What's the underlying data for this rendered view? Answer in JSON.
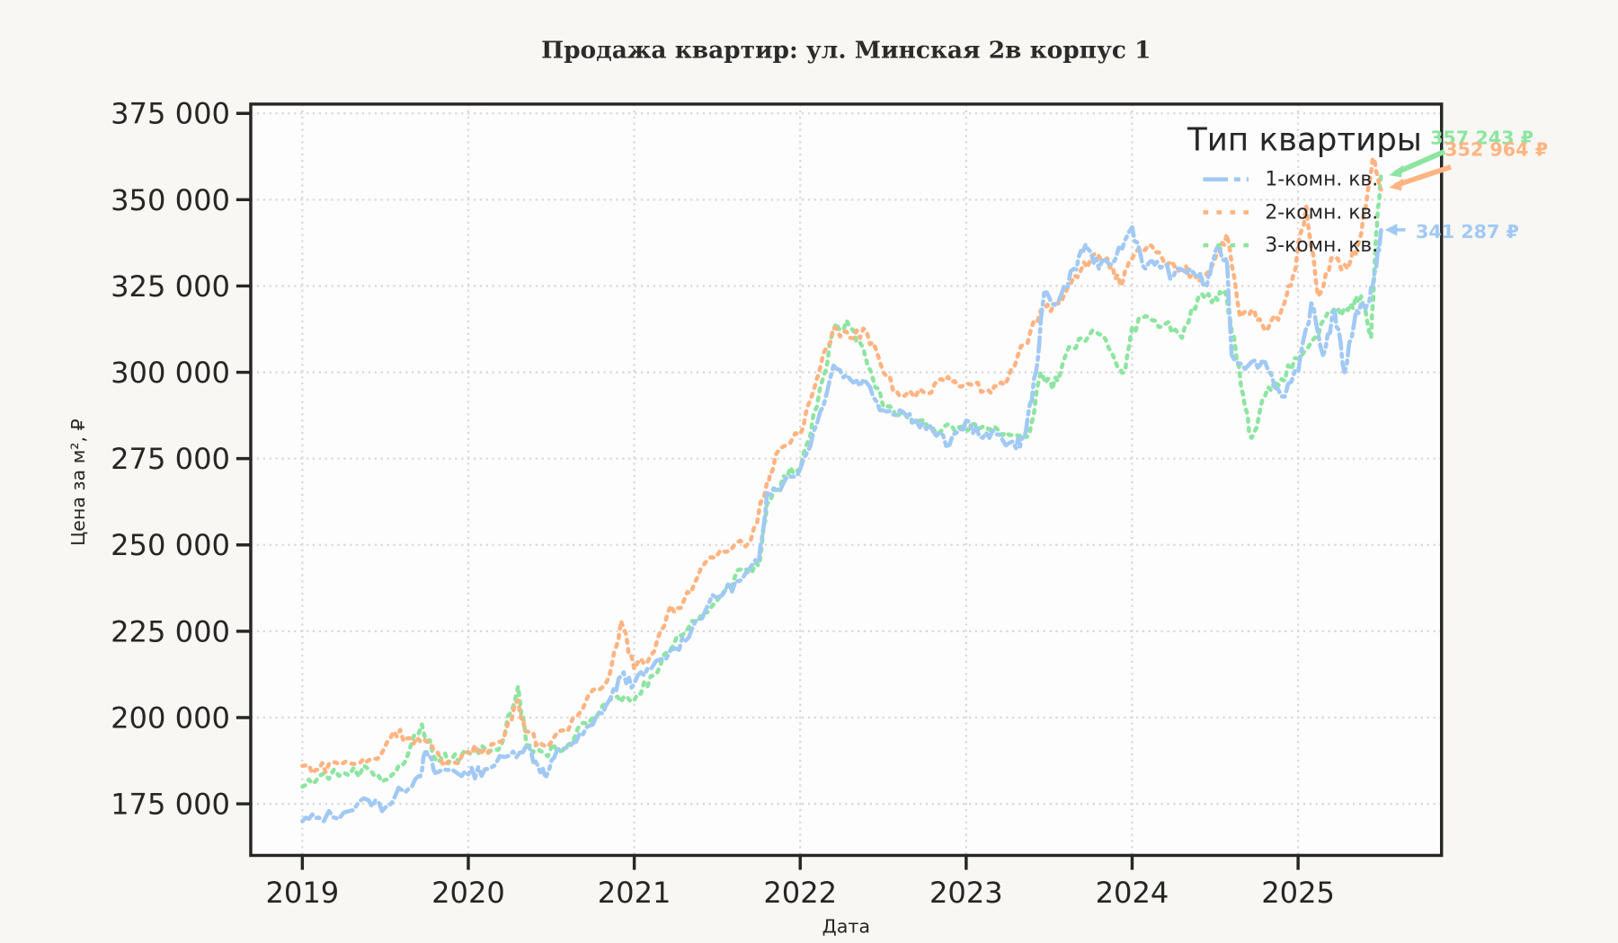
{
  "chart_data": {
    "type": "line",
    "title": "Продажа квартир: ул. Минская 2в корпус 1",
    "xlabel": "Дата",
    "ylabel": "Цена за м², ₽",
    "xlim": [
      2018.69,
      2025.87
    ],
    "ylim": [
      160000,
      377500
    ],
    "x_ticks": [
      2019,
      2020,
      2021,
      2022,
      2023,
      2024,
      2025
    ],
    "x_tick_labels": [
      "2019",
      "2020",
      "2021",
      "2022",
      "2023",
      "2024",
      "2025"
    ],
    "y_ticks": [
      175000,
      200000,
      225000,
      250000,
      275000,
      300000,
      325000,
      350000,
      375000
    ],
    "y_tick_labels": [
      "175 000",
      "200 000",
      "225 000",
      "250 000",
      "275 000",
      "300 000",
      "325 000",
      "350 000",
      "375 000"
    ],
    "grid": true,
    "legend": {
      "title": "Тип квартиры",
      "position": "upper right"
    },
    "series": [
      {
        "name": "1-комн. кв.",
        "color": "#a1c9f4",
        "style": "dashdot",
        "last_value_label": "341 287 ₽",
        "points": [
          [
            2019.0,
            170000
          ],
          [
            2019.1,
            171000
          ],
          [
            2019.25,
            172500
          ],
          [
            2019.4,
            176000
          ],
          [
            2019.5,
            174000
          ],
          [
            2019.6,
            179000
          ],
          [
            2019.7,
            183000
          ],
          [
            2019.75,
            190000
          ],
          [
            2019.8,
            184000
          ],
          [
            2019.9,
            185000
          ],
          [
            2020.0,
            183500
          ],
          [
            2020.1,
            185000
          ],
          [
            2020.25,
            189000
          ],
          [
            2020.35,
            192000
          ],
          [
            2020.42,
            186000
          ],
          [
            2020.47,
            183000
          ],
          [
            2020.55,
            191000
          ],
          [
            2020.65,
            193000
          ],
          [
            2020.75,
            198000
          ],
          [
            2020.85,
            205000
          ],
          [
            2020.92,
            212000
          ],
          [
            2021.0,
            210000
          ],
          [
            2021.1,
            214000
          ],
          [
            2021.25,
            220000
          ],
          [
            2021.35,
            226000
          ],
          [
            2021.45,
            233000
          ],
          [
            2021.55,
            237000
          ],
          [
            2021.65,
            240000
          ],
          [
            2021.75,
            245000
          ],
          [
            2021.8,
            265000
          ],
          [
            2021.9,
            268000
          ],
          [
            2022.0,
            272000
          ],
          [
            2022.1,
            285000
          ],
          [
            2022.2,
            302000
          ],
          [
            2022.3,
            298000
          ],
          [
            2022.4,
            297000
          ],
          [
            2022.5,
            289000
          ],
          [
            2022.6,
            289000
          ],
          [
            2022.7,
            286000
          ],
          [
            2022.8,
            283000
          ],
          [
            2022.9,
            279000
          ],
          [
            2023.0,
            286000
          ],
          [
            2023.1,
            281000
          ],
          [
            2023.2,
            282000
          ],
          [
            2023.3,
            278000
          ],
          [
            2023.36,
            283000
          ],
          [
            2023.42,
            300000
          ],
          [
            2023.47,
            323000
          ],
          [
            2023.55,
            320000
          ],
          [
            2023.65,
            330000
          ],
          [
            2023.72,
            337000
          ],
          [
            2023.8,
            330000
          ],
          [
            2023.9,
            333000
          ],
          [
            2024.0,
            342000
          ],
          [
            2024.08,
            330000
          ],
          [
            2024.15,
            332000
          ],
          [
            2024.25,
            328000
          ],
          [
            2024.35,
            330000
          ],
          [
            2024.45,
            325000
          ],
          [
            2024.5,
            335000
          ],
          [
            2024.57,
            333000
          ],
          [
            2024.6,
            305000
          ],
          [
            2024.7,
            302000
          ],
          [
            2024.8,
            303000
          ],
          [
            2024.9,
            293000
          ],
          [
            2025.0,
            300000
          ],
          [
            2025.08,
            320000
          ],
          [
            2025.15,
            305000
          ],
          [
            2025.22,
            318000
          ],
          [
            2025.28,
            300000
          ],
          [
            2025.35,
            318000
          ],
          [
            2025.42,
            320000
          ],
          [
            2025.47,
            330000
          ],
          [
            2025.5,
            341287
          ]
        ]
      },
      {
        "name": "2-комн. кв.",
        "color": "#ffb482",
        "style": "dotted",
        "last_value_label": "352 964 ₽",
        "points": [
          [
            2019.0,
            186000
          ],
          [
            2019.1,
            185000
          ],
          [
            2019.2,
            187000
          ],
          [
            2019.35,
            187000
          ],
          [
            2019.45,
            188000
          ],
          [
            2019.55,
            196000
          ],
          [
            2019.65,
            194000
          ],
          [
            2019.75,
            193000
          ],
          [
            2019.85,
            186000
          ],
          [
            2020.0,
            190000
          ],
          [
            2020.1,
            191000
          ],
          [
            2020.2,
            193000
          ],
          [
            2020.3,
            205000
          ],
          [
            2020.35,
            196000
          ],
          [
            2020.45,
            192000
          ],
          [
            2020.6,
            196000
          ],
          [
            2020.75,
            208000
          ],
          [
            2020.85,
            212000
          ],
          [
            2020.92,
            228000
          ],
          [
            2021.0,
            214000
          ],
          [
            2021.1,
            218000
          ],
          [
            2021.2,
            230000
          ],
          [
            2021.3,
            234000
          ],
          [
            2021.4,
            243000
          ],
          [
            2021.55,
            248000
          ],
          [
            2021.7,
            251000
          ],
          [
            2021.8,
            268000
          ],
          [
            2021.85,
            276000
          ],
          [
            2022.0,
            282000
          ],
          [
            2022.1,
            298000
          ],
          [
            2022.2,
            313000
          ],
          [
            2022.3,
            310000
          ],
          [
            2022.4,
            312000
          ],
          [
            2022.5,
            300000
          ],
          [
            2022.6,
            293000
          ],
          [
            2022.75,
            294000
          ],
          [
            2022.85,
            298000
          ],
          [
            2022.95,
            296000
          ],
          [
            2023.05,
            297000
          ],
          [
            2023.15,
            294000
          ],
          [
            2023.25,
            298000
          ],
          [
            2023.35,
            308000
          ],
          [
            2023.45,
            318000
          ],
          [
            2023.55,
            320000
          ],
          [
            2023.65,
            328000
          ],
          [
            2023.75,
            333000
          ],
          [
            2023.85,
            333000
          ],
          [
            2023.93,
            325000
          ],
          [
            2024.0,
            333000
          ],
          [
            2024.1,
            337000
          ],
          [
            2024.2,
            331000
          ],
          [
            2024.3,
            330000
          ],
          [
            2024.42,
            327000
          ],
          [
            2024.5,
            333000
          ],
          [
            2024.57,
            340000
          ],
          [
            2024.65,
            316000
          ],
          [
            2024.72,
            318000
          ],
          [
            2024.8,
            312000
          ],
          [
            2024.9,
            318000
          ],
          [
            2024.97,
            328000
          ],
          [
            2025.05,
            348000
          ],
          [
            2025.12,
            322000
          ],
          [
            2025.2,
            333000
          ],
          [
            2025.3,
            330000
          ],
          [
            2025.38,
            340000
          ],
          [
            2025.45,
            362000
          ],
          [
            2025.5,
            352964
          ]
        ]
      },
      {
        "name": "3-комн. кв.",
        "color": "#8de5a1",
        "style": "dotted",
        "last_value_label": "357 243 ₽",
        "points": [
          [
            2019.0,
            180000
          ],
          [
            2019.1,
            183000
          ],
          [
            2019.25,
            184000
          ],
          [
            2019.4,
            185000
          ],
          [
            2019.5,
            182000
          ],
          [
            2019.6,
            186000
          ],
          [
            2019.72,
            198000
          ],
          [
            2019.8,
            188000
          ],
          [
            2019.9,
            188000
          ],
          [
            2020.0,
            190000
          ],
          [
            2020.1,
            191000
          ],
          [
            2020.2,
            192000
          ],
          [
            2020.3,
            209000
          ],
          [
            2020.35,
            192000
          ],
          [
            2020.45,
            190000
          ],
          [
            2020.6,
            192000
          ],
          [
            2020.75,
            200000
          ],
          [
            2020.9,
            206000
          ],
          [
            2021.0,
            205000
          ],
          [
            2021.1,
            212000
          ],
          [
            2021.2,
            219000
          ],
          [
            2021.35,
            228000
          ],
          [
            2021.5,
            234000
          ],
          [
            2021.65,
            243000
          ],
          [
            2021.75,
            244000
          ],
          [
            2021.8,
            262000
          ],
          [
            2021.9,
            270000
          ],
          [
            2022.0,
            272000
          ],
          [
            2022.1,
            290000
          ],
          [
            2022.2,
            312000
          ],
          [
            2022.28,
            315000
          ],
          [
            2022.38,
            307000
          ],
          [
            2022.5,
            290000
          ],
          [
            2022.6,
            288000
          ],
          [
            2022.72,
            286000
          ],
          [
            2022.85,
            283000
          ],
          [
            2022.95,
            284000
          ],
          [
            2023.05,
            285000
          ],
          [
            2023.2,
            283000
          ],
          [
            2023.3,
            282000
          ],
          [
            2023.38,
            282000
          ],
          [
            2023.45,
            300000
          ],
          [
            2023.52,
            295000
          ],
          [
            2023.6,
            305000
          ],
          [
            2023.7,
            310000
          ],
          [
            2023.8,
            311000
          ],
          [
            2023.9,
            303000
          ],
          [
            2023.95,
            300000
          ],
          [
            2024.0,
            313000
          ],
          [
            2024.1,
            316000
          ],
          [
            2024.2,
            314000
          ],
          [
            2024.3,
            310000
          ],
          [
            2024.4,
            322000
          ],
          [
            2024.5,
            322000
          ],
          [
            2024.57,
            322000
          ],
          [
            2024.62,
            308000
          ],
          [
            2024.68,
            290000
          ],
          [
            2024.72,
            281000
          ],
          [
            2024.8,
            293000
          ],
          [
            2024.9,
            298000
          ],
          [
            2025.0,
            304000
          ],
          [
            2025.1,
            310000
          ],
          [
            2025.2,
            317000
          ],
          [
            2025.3,
            318000
          ],
          [
            2025.38,
            322000
          ],
          [
            2025.44,
            310000
          ],
          [
            2025.47,
            340000
          ],
          [
            2025.5,
            357243
          ]
        ]
      }
    ]
  },
  "background_color": "#f8f7f3",
  "plot_background_color": "#fdfdfd"
}
